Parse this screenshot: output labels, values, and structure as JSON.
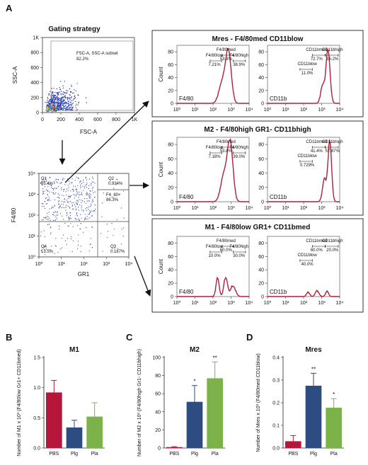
{
  "panel_letters": {
    "a": "A",
    "b": "B",
    "c": "C",
    "d": "D"
  },
  "gating": {
    "title": "Gating strategy",
    "scatter": {
      "xlabel": "FSC-A",
      "ylabel": "SSC-A",
      "xticks": [
        "0",
        "200",
        "400",
        "600",
        "800",
        "1K"
      ],
      "yticks": [
        "0",
        "200",
        "400",
        "600",
        "800",
        "1K"
      ],
      "gate_label_1": "FSC-A, SSC-A subset",
      "gate_label_2": "82.2%"
    },
    "quad": {
      "xlabel": "GR1",
      "ylabel": "F4/80",
      "xticks": [
        "10⁰",
        "10¹",
        "10²",
        "10³",
        "10⁴"
      ],
      "yticks": [
        "10⁰",
        "10¹",
        "10²",
        "10³",
        "10⁴"
      ],
      "q1": "Q1",
      "q1v": "85.4%",
      "q2": "Q2",
      "q2v": "0.934%",
      "f4": "F4_80+",
      "f4v": "86.3%",
      "q3": "Q3",
      "q3v": "0.187%",
      "q4": "Q4",
      "q4v": "13.5%"
    }
  },
  "histograms": {
    "common": {
      "count_label": "Count",
      "yticks": [
        "0",
        "20",
        "40",
        "60",
        "80"
      ],
      "xticks": [
        "10⁰",
        "10¹",
        "10²",
        "10³",
        "10⁴"
      ],
      "f4_label": "F4/80",
      "cd_label": "CD11b"
    },
    "mres": {
      "title": "Mres - F4/80med CD11blow",
      "f4": {
        "low_name": "F4/80low",
        "low": "7.21%",
        "med_name": "F4/80med",
        "med": "53.9%",
        "high_name": "F4/80high",
        "high": "38.9%"
      },
      "cd": {
        "med_name": "CD11bmed",
        "med": "72.7%",
        "high_name": "CD11bhigh",
        "high": "16.2%",
        "low_name": "CD11blow",
        "low": "11.0%"
      }
    },
    "m2": {
      "title": "M2 - F4/80high GR1- CD11bhigh",
      "f4": {
        "low_name": "F4/80low",
        "low": "7.18%",
        "med_name": "F4/80med",
        "med": "53.8%",
        "high_name": "F4/80high",
        "high": "39.0%"
      },
      "cd": {
        "med_name": "CD11bmed",
        "med": "41.4%",
        "high_name": "CD11bhigh",
        "high": "57.87%",
        "low_name": "CD11blow",
        "low": "0.729%"
      }
    },
    "m1": {
      "title": "M1 - F4/80low GR1+ CD11bmed",
      "f4": {
        "low_name": "F4/80low",
        "low": "10.0%",
        "med_name": "F4/80med",
        "med": "60.0%",
        "high_name": "F4/80high",
        "high": "30.0%"
      },
      "cd": {
        "med_name": "CD11bmed",
        "med": "60.0%",
        "high_name": "CD11bhigh",
        "high": "20.0%",
        "low_name": "CD11blow",
        "low": "40.0%"
      }
    }
  },
  "colors": {
    "PBS": "#b5173a",
    "Plg": "#2d4d82",
    "Pla": "#7bb24a",
    "trace": "#b01e3a"
  },
  "chart_data": [
    {
      "type": "bar",
      "title": "M1",
      "categories": [
        "PBS",
        "Plg",
        "Pla"
      ],
      "values": [
        0.92,
        0.34,
        0.52
      ],
      "errors": [
        0.2,
        0.12,
        0.23
      ],
      "sig": [
        "",
        "",
        ""
      ],
      "ylabel": "Number of M1 x 10³ (F4/80low Gr1+ CD11bmed)",
      "ylim": [
        0,
        1.5
      ],
      "yticks": [
        "0.0",
        "0.5",
        "1.0",
        "1.5"
      ]
    },
    {
      "type": "bar",
      "title": "M2",
      "categories": [
        "PBS",
        "Plg",
        "Pla"
      ],
      "values": [
        1,
        51,
        77
      ],
      "errors": [
        0.5,
        18,
        18
      ],
      "sig": [
        "",
        "*",
        "**"
      ],
      "ylabel": "Number of M2 x 10³ (F4/80high Gr1- CD11bhigh)",
      "ylim": [
        0,
        100
      ],
      "yticks": [
        "0",
        "20",
        "40",
        "60",
        "80",
        "100"
      ]
    },
    {
      "type": "bar",
      "title": "Mres",
      "categories": [
        "PBS",
        "Plg",
        "Pla"
      ],
      "values": [
        0.03,
        0.275,
        0.178
      ],
      "errors": [
        0.025,
        0.055,
        0.04
      ],
      "sig": [
        "",
        "**",
        "*"
      ],
      "ylabel": "Number of Mres x 10³ (F4/80med CD11blow)",
      "ylim": [
        0,
        0.4
      ],
      "yticks": [
        "0.0",
        "0.1",
        "0.2",
        "0.3",
        "0.4"
      ]
    }
  ]
}
